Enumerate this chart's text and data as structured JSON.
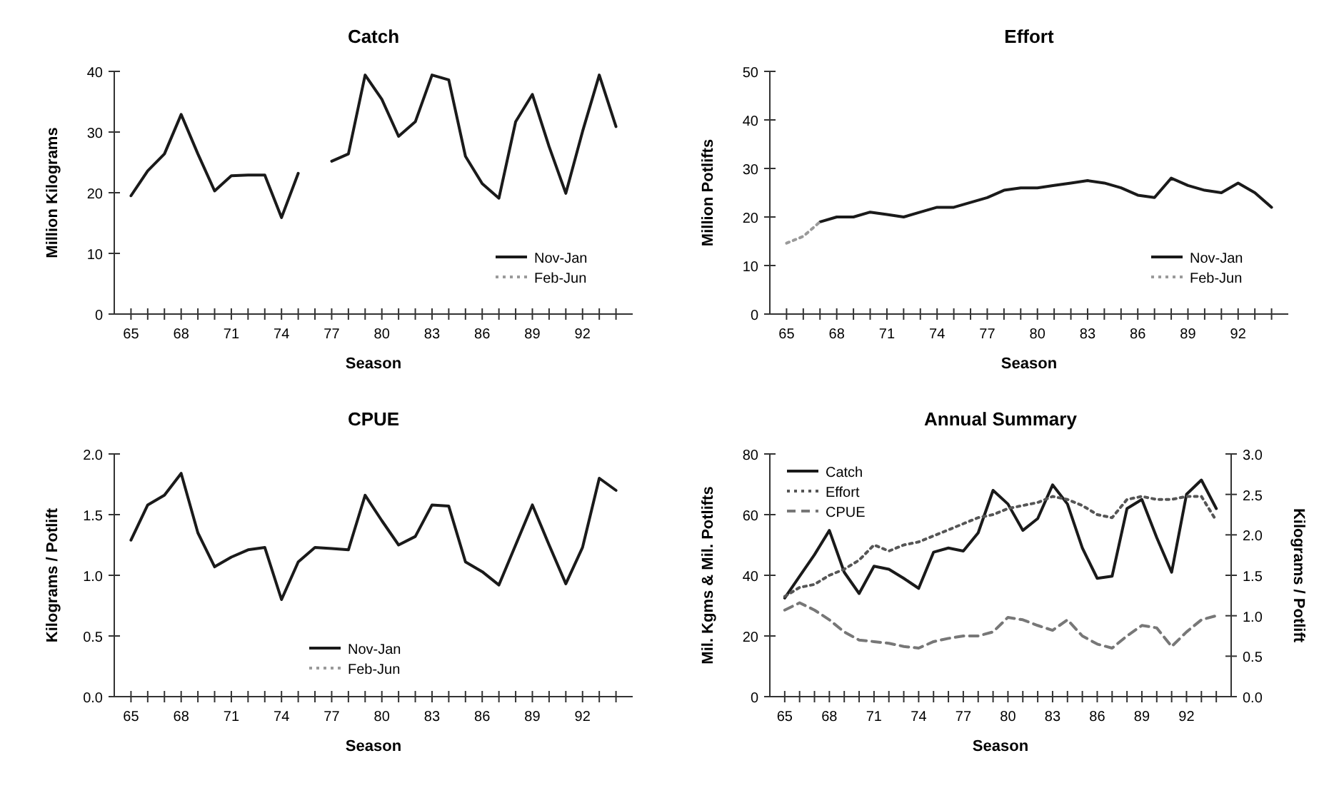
{
  "chart_data": [
    {
      "type": "line",
      "title": "Catch",
      "xlabel": "Season",
      "ylabel": "Million Kilograms",
      "legend": "bottom right",
      "x": [
        65,
        66,
        67,
        68,
        69,
        70,
        71,
        72,
        73,
        74,
        75,
        76,
        77,
        78,
        79,
        80,
        81,
        82,
        83,
        84,
        85,
        86,
        87,
        88,
        89,
        90,
        91,
        92,
        93,
        94
      ],
      "xlim": [
        64,
        95
      ],
      "xticks": [
        65,
        {
          "value": 66,
          "label": null
        },
        {
          "value": 67,
          "label": null
        },
        68,
        {
          "value": 69,
          "label": null
        },
        {
          "value": 70,
          "label": null
        },
        71,
        {
          "value": 72,
          "label": null
        },
        {
          "value": 73,
          "label": null
        },
        74,
        {
          "value": 75,
          "label": null
        },
        {
          "value": 76,
          "label": null
        },
        77,
        {
          "value": 78,
          "label": null
        },
        {
          "value": 79,
          "label": null
        },
        80,
        {
          "value": 81,
          "label": null
        },
        {
          "value": 82,
          "label": null
        },
        83,
        {
          "value": 84,
          "label": null
        },
        {
          "value": 85,
          "label": null
        },
        86,
        {
          "value": 87,
          "label": null
        },
        {
          "value": 88,
          "label": null
        },
        89,
        {
          "value": 90,
          "label": null
        },
        {
          "value": 91,
          "label": null
        },
        92,
        {
          "value": 93,
          "label": null
        },
        {
          "value": 94,
          "label": null
        }
      ],
      "ylim": [
        0,
        40
      ],
      "yticks": [
        0,
        10,
        20,
        30,
        40
      ],
      "series": [
        {
          "name": "Nov-Jan",
          "color": "#1a1a1a",
          "line_style": "solid",
          "values": [
            19.5,
            23.6,
            26.4,
            32.9,
            26.4,
            20.3,
            22.8,
            22.9,
            22.9,
            15.9,
            23.2,
            null,
            25.2,
            26.4,
            39.4,
            35.4,
            29.3,
            31.7,
            39.4,
            38.6,
            26,
            21.5,
            19.1,
            31.7,
            36.2,
            27.6,
            19.9,
            30.1,
            39.4,
            30.9
          ]
        },
        {
          "name": "Feb-Jun",
          "color": "#9a9a9a",
          "line_style": "dotted",
          "values": [
            null,
            null,
            null,
            null,
            null,
            null,
            null,
            null,
            null,
            null,
            null,
            null,
            null,
            null,
            null,
            null,
            null,
            null,
            null,
            null,
            null,
            null,
            null,
            null,
            null,
            null,
            null,
            null,
            null,
            null
          ]
        }
      ]
    },
    {
      "type": "line",
      "title": "Effort",
      "xlabel": "Season",
      "ylabel": "Million Potlifts",
      "legend": "bottom right",
      "x": [
        65,
        66,
        67,
        68,
        69,
        70,
        71,
        72,
        73,
        74,
        75,
        76,
        77,
        78,
        79,
        80,
        81,
        82,
        83,
        84,
        85,
        86,
        87,
        88,
        89,
        90,
        91,
        92,
        93,
        94
      ],
      "xlim": [
        64,
        95
      ],
      "xticks": [
        65,
        {
          "value": 66,
          "label": null
        },
        {
          "value": 67,
          "label": null
        },
        68,
        {
          "value": 69,
          "label": null
        },
        {
          "value": 70,
          "label": null
        },
        71,
        {
          "value": 72,
          "label": null
        },
        {
          "value": 73,
          "label": null
        },
        74,
        {
          "value": 75,
          "label": null
        },
        {
          "value": 76,
          "label": null
        },
        77,
        {
          "value": 78,
          "label": null
        },
        {
          "value": 79,
          "label": null
        },
        80,
        {
          "value": 81,
          "label": null
        },
        {
          "value": 82,
          "label": null
        },
        83,
        {
          "value": 84,
          "label": null
        },
        {
          "value": 85,
          "label": null
        },
        86,
        {
          "value": 87,
          "label": null
        },
        {
          "value": 88,
          "label": null
        },
        89,
        {
          "value": 90,
          "label": null
        },
        {
          "value": 91,
          "label": null
        },
        92,
        {
          "value": 93,
          "label": null
        },
        {
          "value": 94,
          "label": null
        }
      ],
      "ylim": [
        0,
        50
      ],
      "yticks": [
        0,
        10,
        20,
        30,
        40,
        50
      ],
      "series": [
        {
          "name": "Nov-Jan",
          "color": "#1a1a1a",
          "line_style": "solid",
          "values": [
            null,
            null,
            19,
            20,
            20,
            21,
            20.5,
            20,
            21,
            22,
            22,
            23,
            24,
            25.5,
            26,
            26,
            26.5,
            27,
            27.5,
            27,
            26,
            24.5,
            24,
            28,
            26.5,
            25.5,
            25,
            27,
            25,
            22
          ]
        },
        {
          "name": "Feb-Jun",
          "color": "#9a9a9a",
          "line_style": "dotted",
          "values": [
            14.6,
            16,
            19,
            null,
            null,
            null,
            null,
            null,
            null,
            null,
            null,
            null,
            null,
            null,
            null,
            null,
            null,
            null,
            null,
            null,
            null,
            null,
            null,
            null,
            null,
            null,
            null,
            null,
            null,
            null
          ]
        }
      ]
    },
    {
      "type": "line",
      "title": "CPUE",
      "xlabel": "Season",
      "ylabel": "Kilograms / Potlift",
      "legend": "bottom",
      "x": [
        65,
        66,
        67,
        68,
        69,
        70,
        71,
        72,
        73,
        74,
        75,
        76,
        77,
        78,
        79,
        80,
        81,
        82,
        83,
        84,
        85,
        86,
        87,
        88,
        89,
        90,
        91,
        92,
        93,
        94
      ],
      "xlim": [
        64,
        95
      ],
      "xticks": [
        65,
        {
          "value": 66,
          "label": null
        },
        {
          "value": 67,
          "label": null
        },
        68,
        {
          "value": 69,
          "label": null
        },
        {
          "value": 70,
          "label": null
        },
        71,
        {
          "value": 72,
          "label": null
        },
        {
          "value": 73,
          "label": null
        },
        74,
        {
          "value": 75,
          "label": null
        },
        {
          "value": 76,
          "label": null
        },
        77,
        {
          "value": 78,
          "label": null
        },
        {
          "value": 79,
          "label": null
        },
        80,
        {
          "value": 81,
          "label": null
        },
        {
          "value": 82,
          "label": null
        },
        83,
        {
          "value": 84,
          "label": null
        },
        {
          "value": 85,
          "label": null
        },
        86,
        {
          "value": 87,
          "label": null
        },
        {
          "value": 88,
          "label": null
        },
        89,
        {
          "value": 90,
          "label": null
        },
        {
          "value": 91,
          "label": null
        },
        92,
        {
          "value": 93,
          "label": null
        },
        {
          "value": 94,
          "label": null
        }
      ],
      "ylim": [
        0,
        2
      ],
      "yticks": [
        {
          "value": 0,
          "label": "0.0"
        },
        0.5,
        {
          "value": 1,
          "label": "1.0"
        },
        1.5,
        {
          "value": 2,
          "label": "2.0"
        }
      ],
      "series": [
        {
          "name": "Nov-Jan",
          "color": "#1a1a1a",
          "line_style": "solid",
          "values": [
            1.29,
            1.58,
            1.66,
            1.84,
            1.35,
            1.07,
            1.15,
            1.21,
            1.23,
            0.8,
            1.11,
            1.23,
            1.22,
            1.21,
            1.66,
            1.45,
            1.25,
            1.32,
            1.58,
            1.57,
            1.11,
            1.03,
            0.92,
            1.25,
            1.58,
            1.25,
            0.93,
            1.23,
            1.8,
            1.7
          ]
        },
        {
          "name": "Feb-Jun",
          "color": "#9a9a9a",
          "line_style": "dotted",
          "values": [
            null,
            null,
            null,
            null,
            null,
            null,
            null,
            null,
            null,
            null,
            null,
            null,
            null,
            null,
            null,
            null,
            null,
            null,
            null,
            null,
            null,
            null,
            null,
            null,
            null,
            null,
            null,
            null,
            null,
            null
          ]
        }
      ]
    },
    {
      "type": "line",
      "title": "Annual Summary",
      "xlabel": "Season",
      "ylabel": "Mil. Kgms & Mil. Potlifts",
      "y2label": "Kilograms / Potlift",
      "legend": "top left",
      "x": [
        65,
        66,
        67,
        68,
        69,
        70,
        71,
        72,
        73,
        74,
        75,
        76,
        77,
        78,
        79,
        80,
        81,
        82,
        83,
        84,
        85,
        86,
        87,
        88,
        89,
        90,
        91,
        92,
        93,
        94
      ],
      "xlim": [
        64,
        95
      ],
      "xticks": [
        65,
        {
          "value": 66,
          "label": null
        },
        {
          "value": 67,
          "label": null
        },
        68,
        {
          "value": 69,
          "label": null
        },
        {
          "value": 70,
          "label": null
        },
        71,
        {
          "value": 72,
          "label": null
        },
        {
          "value": 73,
          "label": null
        },
        74,
        {
          "value": 75,
          "label": null
        },
        {
          "value": 76,
          "label": null
        },
        77,
        {
          "value": 78,
          "label": null
        },
        {
          "value": 79,
          "label": null
        },
        80,
        {
          "value": 81,
          "label": null
        },
        {
          "value": 82,
          "label": null
        },
        83,
        {
          "value": 84,
          "label": null
        },
        {
          "value": 85,
          "label": null
        },
        86,
        {
          "value": 87,
          "label": null
        },
        {
          "value": 88,
          "label": null
        },
        89,
        {
          "value": 90,
          "label": null
        },
        {
          "value": 91,
          "label": null
        },
        92,
        {
          "value": 93,
          "label": null
        },
        {
          "value": 94,
          "label": null
        }
      ],
      "ylim": [
        0,
        80
      ],
      "yticks": [
        0,
        20,
        40,
        60,
        80
      ],
      "y2lim": [
        0,
        3
      ],
      "y2ticks": [
        {
          "value": 0,
          "label": "0.0"
        },
        0.5,
        {
          "value": 1,
          "label": "1.0"
        },
        1.5,
        {
          "value": 2,
          "label": "2.0"
        },
        2.5,
        {
          "value": 3,
          "label": "3.0"
        }
      ],
      "series": [
        {
          "name": "Catch",
          "color": "#1a1a1a",
          "line_style": "solid",
          "values": [
            32.5,
            39.7,
            46.8,
            54.8,
            41,
            34,
            43,
            42,
            39,
            35.7,
            47.6,
            49,
            48,
            54,
            68,
            63.5,
            54.8,
            58.7,
            69.8,
            63.5,
            49,
            39,
            39.7,
            62,
            65,
            52.4,
            41,
            66.7,
            71.4,
            62
          ]
        },
        {
          "name": "Effort",
          "color": "#555555",
          "line_style": "dotted",
          "values": [
            33,
            36,
            37,
            40,
            42,
            45,
            50,
            48,
            50,
            51,
            53,
            55,
            57,
            59,
            60,
            62,
            63,
            64,
            66,
            65,
            63,
            60,
            59,
            65,
            66,
            65,
            65,
            66,
            66,
            58
          ]
        },
        {
          "name": "CPUE",
          "color": "#777777",
          "line_style": "dashed",
          "axis": "y2",
          "values": [
            1.07,
            1.16,
            1.07,
            0.95,
            0.8,
            0.7,
            0.68,
            0.66,
            0.62,
            0.6,
            0.68,
            0.72,
            0.75,
            0.75,
            0.8,
            0.98,
            0.95,
            0.88,
            0.82,
            0.95,
            0.75,
            0.65,
            0.6,
            0.75,
            0.88,
            0.85,
            0.62,
            0.8,
            0.95,
            1
          ]
        }
      ]
    }
  ]
}
